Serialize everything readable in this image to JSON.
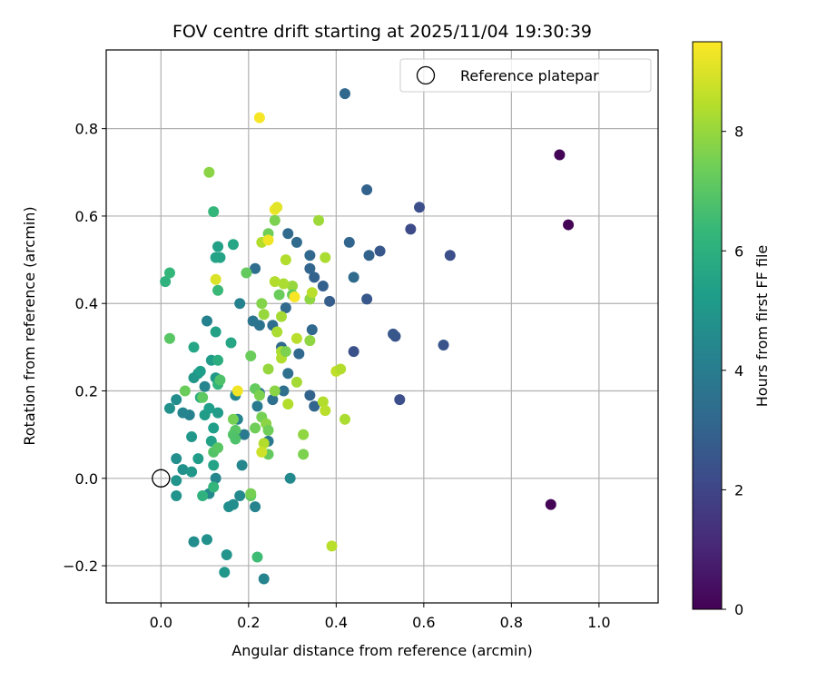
{
  "chart_data": {
    "type": "scatter",
    "title": "FOV centre drift starting at 2025/11/04 19:30:39",
    "xlabel": "Angular distance from reference (arcmin)",
    "ylabel": "Rotation from reference (arcmin)",
    "xlim": [
      -0.125,
      1.135
    ],
    "ylim": [
      -0.285,
      0.98
    ],
    "x_ticks": [
      0.0,
      0.2,
      0.4,
      0.6,
      0.8,
      1.0
    ],
    "x_tick_labels": [
      "0.0",
      "0.2",
      "0.4",
      "0.6",
      "0.8",
      "1.0"
    ],
    "y_ticks": [
      -0.2,
      0.0,
      0.2,
      0.4,
      0.6,
      0.8
    ],
    "y_tick_labels": [
      "−0.2",
      "0.0",
      "0.2",
      "0.4",
      "0.6",
      "0.8"
    ],
    "grid": true,
    "legend": {
      "position": "top-right",
      "entries": [
        "Reference platepar"
      ]
    },
    "reference_point": {
      "x": 0.0,
      "y": 0.0,
      "label": "Reference platepar"
    },
    "colorbar": {
      "label": "Hours from first FF file",
      "range": [
        0,
        9.5
      ],
      "ticks": [
        0,
        2,
        4,
        6,
        8
      ],
      "tick_labels": [
        "0",
        "2",
        "4",
        "6",
        "8"
      ],
      "colormap": [
        "#440154",
        "#482878",
        "#3e4989",
        "#31688e",
        "#26828e",
        "#1f9e89",
        "#35b779",
        "#6ece58",
        "#b5de2b",
        "#fde725"
      ]
    },
    "series": [
      {
        "name": "FOV centre drift",
        "points": [
          {
            "x": 0.91,
            "y": 0.74,
            "h": 0.1
          },
          {
            "x": 0.93,
            "y": 0.58,
            "h": 0.1
          },
          {
            "x": 0.89,
            "y": -0.06,
            "h": 0.1
          },
          {
            "x": 0.42,
            "y": 0.88,
            "h": 3.2
          },
          {
            "x": 0.47,
            "y": 0.66,
            "h": 3.0
          },
          {
            "x": 0.59,
            "y": 0.62,
            "h": 2.3
          },
          {
            "x": 0.57,
            "y": 0.57,
            "h": 2.2
          },
          {
            "x": 0.66,
            "y": 0.51,
            "h": 2.3
          },
          {
            "x": 0.5,
            "y": 0.52,
            "h": 2.6
          },
          {
            "x": 0.43,
            "y": 0.54,
            "h": 3.1
          },
          {
            "x": 0.475,
            "y": 0.51,
            "h": 3.0
          },
          {
            "x": 0.47,
            "y": 0.41,
            "h": 2.6
          },
          {
            "x": 0.44,
            "y": 0.46,
            "h": 3.3
          },
          {
            "x": 0.535,
            "y": 0.325,
            "h": 2.5
          },
          {
            "x": 0.53,
            "y": 0.33,
            "h": 2.6
          },
          {
            "x": 0.645,
            "y": 0.305,
            "h": 2.5
          },
          {
            "x": 0.44,
            "y": 0.29,
            "h": 2.4
          },
          {
            "x": 0.545,
            "y": 0.18,
            "h": 2.3
          },
          {
            "x": 0.385,
            "y": 0.405,
            "h": 2.8
          },
          {
            "x": 0.37,
            "y": 0.44,
            "h": 2.9
          },
          {
            "x": 0.35,
            "y": 0.46,
            "h": 3.0
          },
          {
            "x": 0.34,
            "y": 0.48,
            "h": 3.1
          },
          {
            "x": 0.34,
            "y": 0.51,
            "h": 3.2
          },
          {
            "x": 0.31,
            "y": 0.54,
            "h": 3.3
          },
          {
            "x": 0.29,
            "y": 0.56,
            "h": 3.3
          },
          {
            "x": 0.345,
            "y": 0.34,
            "h": 3.2
          },
          {
            "x": 0.34,
            "y": 0.19,
            "h": 3.0
          },
          {
            "x": 0.35,
            "y": 0.165,
            "h": 3.1
          },
          {
            "x": 0.315,
            "y": 0.285,
            "h": 3.2
          },
          {
            "x": 0.285,
            "y": 0.39,
            "h": 3.3
          },
          {
            "x": 0.275,
            "y": 0.3,
            "h": 3.3
          },
          {
            "x": 0.29,
            "y": 0.24,
            "h": 3.5
          },
          {
            "x": 0.28,
            "y": 0.2,
            "h": 3.5
          },
          {
            "x": 0.255,
            "y": 0.18,
            "h": 3.5
          },
          {
            "x": 0.215,
            "y": 0.48,
            "h": 3.4
          },
          {
            "x": 0.255,
            "y": 0.35,
            "h": 3.4
          },
          {
            "x": 0.225,
            "y": 0.35,
            "h": 3.6
          },
          {
            "x": 0.21,
            "y": 0.36,
            "h": 3.7
          },
          {
            "x": 0.225,
            "y": 0.195,
            "h": 3.6
          },
          {
            "x": 0.22,
            "y": 0.165,
            "h": 3.9
          },
          {
            "x": 0.245,
            "y": 0.085,
            "h": 3.8
          },
          {
            "x": 0.19,
            "y": 0.1,
            "h": 3.9
          },
          {
            "x": 0.175,
            "y": 0.135,
            "h": 4.2
          },
          {
            "x": 0.17,
            "y": 0.19,
            "h": 4.4
          },
          {
            "x": 0.18,
            "y": 0.4,
            "h": 4.2
          },
          {
            "x": 0.105,
            "y": 0.36,
            "h": 4.2
          },
          {
            "x": 0.1,
            "y": 0.21,
            "h": 4.3
          },
          {
            "x": 0.185,
            "y": 0.03,
            "h": 4.4
          },
          {
            "x": 0.215,
            "y": -0.065,
            "h": 4.3
          },
          {
            "x": 0.235,
            "y": -0.23,
            "h": 4.3
          },
          {
            "x": 0.295,
            "y": 0.0,
            "h": 4.5
          },
          {
            "x": 0.125,
            "y": 0.0,
            "h": 4.4
          },
          {
            "x": 0.11,
            "y": -0.035,
            "h": 4.5
          },
          {
            "x": 0.075,
            "y": -0.145,
            "h": 4.6
          },
          {
            "x": 0.105,
            "y": -0.14,
            "h": 4.8
          },
          {
            "x": 0.155,
            "y": -0.065,
            "h": 4.7
          },
          {
            "x": 0.165,
            "y": -0.06,
            "h": 4.6
          },
          {
            "x": 0.18,
            "y": -0.04,
            "h": 4.5
          },
          {
            "x": 0.15,
            "y": -0.175,
            "h": 4.9
          },
          {
            "x": 0.145,
            "y": -0.215,
            "h": 5.0
          },
          {
            "x": 0.065,
            "y": 0.145,
            "h": 4.2
          },
          {
            "x": 0.05,
            "y": 0.15,
            "h": 4.3
          },
          {
            "x": 0.035,
            "y": 0.18,
            "h": 4.6
          },
          {
            "x": 0.02,
            "y": 0.16,
            "h": 4.8
          },
          {
            "x": 0.035,
            "y": 0.045,
            "h": 4.7
          },
          {
            "x": 0.05,
            "y": 0.02,
            "h": 4.8
          },
          {
            "x": 0.035,
            "y": -0.005,
            "h": 4.9
          },
          {
            "x": 0.035,
            "y": -0.04,
            "h": 4.9
          },
          {
            "x": 0.07,
            "y": 0.015,
            "h": 5.0
          },
          {
            "x": 0.07,
            "y": 0.095,
            "h": 5.0
          },
          {
            "x": 0.085,
            "y": 0.045,
            "h": 5.2
          },
          {
            "x": 0.085,
            "y": 0.24,
            "h": 5.1
          },
          {
            "x": 0.075,
            "y": 0.23,
            "h": 5.0
          },
          {
            "x": 0.09,
            "y": 0.245,
            "h": 5.3
          },
          {
            "x": 0.1,
            "y": 0.145,
            "h": 5.2
          },
          {
            "x": 0.11,
            "y": 0.16,
            "h": 5.3
          },
          {
            "x": 0.115,
            "y": 0.085,
            "h": 5.4
          },
          {
            "x": 0.12,
            "y": 0.03,
            "h": 5.5
          },
          {
            "x": 0.12,
            "y": 0.115,
            "h": 5.3
          },
          {
            "x": 0.13,
            "y": 0.15,
            "h": 5.2
          },
          {
            "x": 0.125,
            "y": 0.23,
            "h": 5.1
          },
          {
            "x": 0.115,
            "y": 0.27,
            "h": 5.2
          },
          {
            "x": 0.125,
            "y": 0.335,
            "h": 5.4
          },
          {
            "x": 0.16,
            "y": 0.31,
            "h": 5.6
          },
          {
            "x": 0.075,
            "y": 0.3,
            "h": 5.6
          },
          {
            "x": 0.125,
            "y": 0.505,
            "h": 5.5
          },
          {
            "x": 0.13,
            "y": 0.53,
            "h": 5.4
          },
          {
            "x": 0.135,
            "y": 0.505,
            "h": 5.5
          },
          {
            "x": 0.165,
            "y": 0.535,
            "h": 5.6
          },
          {
            "x": 0.12,
            "y": 0.61,
            "h": 6.3
          },
          {
            "x": 0.01,
            "y": 0.45,
            "h": 6.1
          },
          {
            "x": 0.02,
            "y": 0.47,
            "h": 6.3
          },
          {
            "x": 0.12,
            "y": -0.02,
            "h": 6.2
          },
          {
            "x": 0.095,
            "y": -0.04,
            "h": 6.1
          },
          {
            "x": 0.13,
            "y": 0.215,
            "h": 6.2
          },
          {
            "x": 0.09,
            "y": 0.185,
            "h": 5.8
          },
          {
            "x": 0.13,
            "y": 0.27,
            "h": 5.9
          },
          {
            "x": 0.13,
            "y": 0.43,
            "h": 6.4
          },
          {
            "x": 0.195,
            "y": 0.47,
            "h": 7.2
          },
          {
            "x": 0.02,
            "y": 0.32,
            "h": 7.0
          },
          {
            "x": 0.055,
            "y": 0.2,
            "h": 7.3
          },
          {
            "x": 0.095,
            "y": 0.185,
            "h": 7.1
          },
          {
            "x": 0.135,
            "y": 0.225,
            "h": 6.8
          },
          {
            "x": 0.12,
            "y": 0.06,
            "h": 6.9
          },
          {
            "x": 0.13,
            "y": 0.07,
            "h": 7.0
          },
          {
            "x": 0.165,
            "y": 0.135,
            "h": 7.5
          },
          {
            "x": 0.17,
            "y": 0.11,
            "h": 7.0
          },
          {
            "x": 0.165,
            "y": 0.1,
            "h": 6.9
          },
          {
            "x": 0.17,
            "y": 0.09,
            "h": 6.8
          },
          {
            "x": 0.205,
            "y": -0.04,
            "h": 7.1
          },
          {
            "x": 0.205,
            "y": -0.035,
            "h": 7.5
          },
          {
            "x": 0.22,
            "y": -0.18,
            "h": 6.5
          },
          {
            "x": 0.205,
            "y": 0.28,
            "h": 7.3
          },
          {
            "x": 0.215,
            "y": 0.205,
            "h": 7.2
          },
          {
            "x": 0.215,
            "y": 0.115,
            "h": 7.4
          },
          {
            "x": 0.225,
            "y": 0.19,
            "h": 7.6
          },
          {
            "x": 0.23,
            "y": 0.14,
            "h": 7.5
          },
          {
            "x": 0.24,
            "y": 0.125,
            "h": 7.8
          },
          {
            "x": 0.245,
            "y": 0.11,
            "h": 7.4
          },
          {
            "x": 0.235,
            "y": 0.08,
            "h": 8.4
          },
          {
            "x": 0.245,
            "y": 0.055,
            "h": 7.2
          },
          {
            "x": 0.245,
            "y": 0.25,
            "h": 8.0
          },
          {
            "x": 0.23,
            "y": 0.4,
            "h": 7.7
          },
          {
            "x": 0.235,
            "y": 0.375,
            "h": 8.0
          },
          {
            "x": 0.245,
            "y": 0.56,
            "h": 7.4
          },
          {
            "x": 0.26,
            "y": 0.59,
            "h": 7.6
          },
          {
            "x": 0.23,
            "y": 0.54,
            "h": 8.4
          },
          {
            "x": 0.27,
            "y": 0.42,
            "h": 7.3
          },
          {
            "x": 0.265,
            "y": 0.335,
            "h": 8.3
          },
          {
            "x": 0.275,
            "y": 0.37,
            "h": 8.2
          },
          {
            "x": 0.275,
            "y": 0.29,
            "h": 8.3
          },
          {
            "x": 0.275,
            "y": 0.275,
            "h": 8.4
          },
          {
            "x": 0.285,
            "y": 0.29,
            "h": 7.6
          },
          {
            "x": 0.26,
            "y": 0.2,
            "h": 7.8
          },
          {
            "x": 0.29,
            "y": 0.17,
            "h": 8.4
          },
          {
            "x": 0.3,
            "y": 0.44,
            "h": 8.0
          },
          {
            "x": 0.3,
            "y": 0.42,
            "h": 7.2
          },
          {
            "x": 0.28,
            "y": 0.445,
            "h": 8.3
          },
          {
            "x": 0.26,
            "y": 0.45,
            "h": 8.4
          },
          {
            "x": 0.285,
            "y": 0.5,
            "h": 8.4
          },
          {
            "x": 0.31,
            "y": 0.22,
            "h": 8.2
          },
          {
            "x": 0.31,
            "y": 0.32,
            "h": 8.5
          },
          {
            "x": 0.34,
            "y": 0.41,
            "h": 7.9
          },
          {
            "x": 0.34,
            "y": 0.315,
            "h": 7.9
          },
          {
            "x": 0.325,
            "y": 0.1,
            "h": 7.9
          },
          {
            "x": 0.325,
            "y": 0.055,
            "h": 7.6
          },
          {
            "x": 0.345,
            "y": 0.425,
            "h": 8.5
          },
          {
            "x": 0.36,
            "y": 0.59,
            "h": 8.1
          },
          {
            "x": 0.375,
            "y": 0.505,
            "h": 8.3
          },
          {
            "x": 0.37,
            "y": 0.175,
            "h": 8.4
          },
          {
            "x": 0.375,
            "y": 0.155,
            "h": 8.5
          },
          {
            "x": 0.4,
            "y": 0.245,
            "h": 8.6
          },
          {
            "x": 0.41,
            "y": 0.25,
            "h": 8.4
          },
          {
            "x": 0.42,
            "y": 0.135,
            "h": 8.3
          },
          {
            "x": 0.39,
            "y": -0.155,
            "h": 8.5
          },
          {
            "x": 0.11,
            "y": 0.7,
            "h": 7.8
          },
          {
            "x": 0.225,
            "y": 0.825,
            "h": 9.4
          },
          {
            "x": 0.26,
            "y": 0.615,
            "h": 9.3
          },
          {
            "x": 0.265,
            "y": 0.62,
            "h": 9.1
          },
          {
            "x": 0.245,
            "y": 0.545,
            "h": 9.3
          },
          {
            "x": 0.305,
            "y": 0.415,
            "h": 9.4
          },
          {
            "x": 0.125,
            "y": 0.455,
            "h": 9.0
          },
          {
            "x": 0.175,
            "y": 0.2,
            "h": 9.3
          },
          {
            "x": 0.23,
            "y": 0.06,
            "h": 8.8
          }
        ]
      }
    ]
  }
}
